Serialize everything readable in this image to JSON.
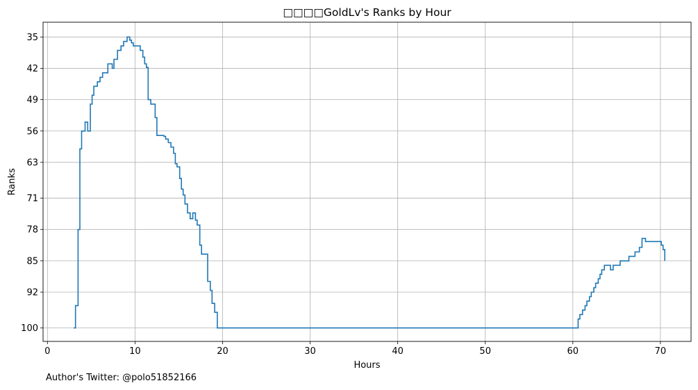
{
  "chart_data": {
    "type": "line",
    "drawstyle": "steps",
    "title": "□□□□GoldLv's Ranks by Hour",
    "xlabel": "Hours",
    "ylabel": "Ranks",
    "xlim": [
      -0.5,
      73.5
    ],
    "ylim": [
      103.0,
      31.7
    ],
    "y_inverted": true,
    "grid": true,
    "xticks": [
      0,
      10,
      20,
      30,
      40,
      50,
      60,
      70
    ],
    "yticks": [
      35,
      42,
      49,
      56,
      63,
      71,
      78,
      85,
      92,
      100
    ],
    "line_color": "#1f77b4",
    "series": [
      {
        "x": [
          3.0,
          3.2,
          3.5,
          3.7,
          3.9,
          4.3,
          4.6,
          4.9,
          5.1,
          5.3,
          5.7,
          6.0,
          6.3,
          6.7,
          6.9,
          7.4,
          7.6,
          8.0,
          8.4,
          8.7,
          9.1,
          9.4,
          9.6,
          9.8,
          10.6,
          10.9,
          11.1,
          11.3,
          11.5,
          11.8,
          12.3,
          12.5,
          13.3,
          13.5,
          13.8,
          14.1,
          14.4,
          14.6,
          14.8,
          15.1,
          15.3,
          15.5,
          15.7,
          16.0,
          16.3,
          16.6,
          16.9,
          17.1,
          17.4,
          17.6,
          18.3,
          18.6,
          18.8,
          19.1,
          19.4,
          59.9,
          60.6,
          60.8,
          61.1,
          61.4,
          61.6,
          61.9,
          62.1,
          62.4,
          62.6,
          62.9,
          63.1,
          63.3,
          63.6,
          64.1,
          64.3,
          64.6,
          65.1,
          65.4,
          66.1,
          66.4,
          67.1,
          67.6,
          67.9,
          68.3,
          69.9,
          70.1,
          70.3,
          70.5
        ],
        "y": [
          100,
          95,
          78,
          60,
          56,
          54,
          56,
          50,
          48,
          46,
          45,
          44,
          43,
          43,
          41,
          42,
          40,
          38,
          37,
          36,
          35,
          35.7,
          36.3,
          37,
          38,
          39.5,
          41,
          41.8,
          49,
          50,
          53,
          57,
          57.2,
          57.8,
          58.6,
          59.6,
          61,
          63.3,
          64,
          66.6,
          69,
          70.3,
          72.3,
          74.3,
          75.6,
          74.3,
          75.9,
          77,
          81.5,
          83.5,
          89.6,
          91.6,
          94.5,
          96.5,
          100,
          100,
          98,
          97,
          96,
          95,
          94,
          93,
          92,
          91,
          90,
          89,
          88,
          87,
          86,
          86,
          87,
          86,
          86,
          85,
          85,
          84,
          83,
          82,
          80,
          80.7,
          80.7,
          81.5,
          82.5,
          85
        ]
      }
    ]
  },
  "credit": "Author's Twitter: @polo51852166"
}
